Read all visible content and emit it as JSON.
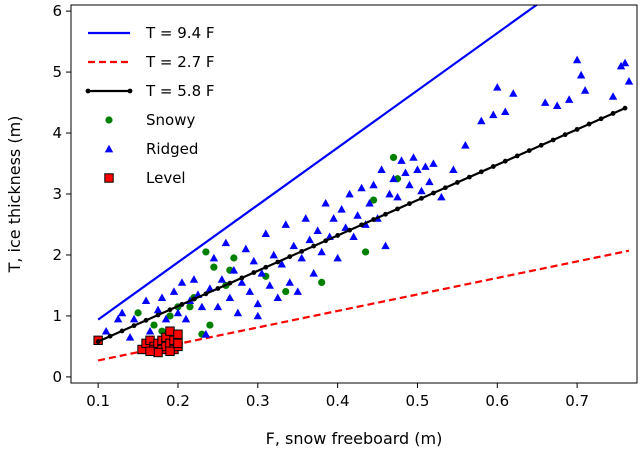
{
  "chart_data": {
    "type": "scatter",
    "title": "",
    "xlabel": "F, snow freeboard (m)",
    "ylabel": "T, ice thickness (m)",
    "xlim": [
      0.066,
      0.775
    ],
    "ylim": [
      -0.1,
      6.1
    ],
    "x_ticks": [
      0.1,
      0.2,
      0.3,
      0.4,
      0.5,
      0.6,
      0.7
    ],
    "x_tick_labels": [
      "0.1",
      "0.2",
      "0.3",
      "0.4",
      "0.5",
      "0.6",
      "0.7"
    ],
    "y_ticks": [
      0,
      1,
      2,
      3,
      4,
      5,
      6
    ],
    "y_tick_labels": [
      "0",
      "1",
      "2",
      "3",
      "4",
      "5",
      "6"
    ],
    "grid": false,
    "legend_position": "top-left",
    "series": [
      {
        "name": "T = 9.4 F",
        "kind": "line",
        "style": "solid",
        "color": "#0000ff",
        "x": [
          0.1,
          0.765
        ],
        "y": [
          0.94,
          7.19
        ]
      },
      {
        "name": "T = 2.7 F",
        "kind": "line",
        "style": "dashed",
        "color": "#ff0000",
        "x": [
          0.1,
          0.765
        ],
        "y": [
          0.27,
          2.07
        ]
      },
      {
        "name": "T = 5.8 F",
        "kind": "line-markers",
        "style": "solid",
        "color": "#000000",
        "x_start": 0.1,
        "x_end": 0.765,
        "x_step": 0.015,
        "slope": 5.8
      },
      {
        "name": "Snowy",
        "kind": "scatter",
        "marker": "circle",
        "color": "#008000",
        "points": [
          [
            0.15,
            1.05
          ],
          [
            0.17,
            0.85
          ],
          [
            0.19,
            1.0
          ],
          [
            0.2,
            1.15
          ],
          [
            0.215,
            1.15
          ],
          [
            0.22,
            1.3
          ],
          [
            0.235,
            2.05
          ],
          [
            0.245,
            1.8
          ],
          [
            0.24,
            0.85
          ],
          [
            0.26,
            1.5
          ],
          [
            0.265,
            1.75
          ],
          [
            0.27,
            1.95
          ],
          [
            0.31,
            1.65
          ],
          [
            0.335,
            1.4
          ],
          [
            0.38,
            1.55
          ],
          [
            0.435,
            2.05
          ],
          [
            0.445,
            2.9
          ],
          [
            0.47,
            3.6
          ],
          [
            0.475,
            3.25
          ],
          [
            0.23,
            0.7
          ],
          [
            0.18,
            0.75
          ]
        ]
      },
      {
        "name": "Ridged",
        "kind": "scatter",
        "marker": "triangle",
        "color": "#0000ff",
        "points": [
          [
            0.13,
            1.05
          ],
          [
            0.145,
            0.95
          ],
          [
            0.16,
            1.25
          ],
          [
            0.165,
            0.75
          ],
          [
            0.175,
            1.1
          ],
          [
            0.18,
            1.3
          ],
          [
            0.185,
            0.95
          ],
          [
            0.195,
            1.4
          ],
          [
            0.2,
            1.05
          ],
          [
            0.205,
            1.55
          ],
          [
            0.21,
            0.95
          ],
          [
            0.215,
            1.25
          ],
          [
            0.22,
            1.6
          ],
          [
            0.225,
            1.35
          ],
          [
            0.23,
            1.15
          ],
          [
            0.235,
            0.7
          ],
          [
            0.24,
            1.45
          ],
          [
            0.245,
            1.95
          ],
          [
            0.25,
            1.15
          ],
          [
            0.255,
            1.6
          ],
          [
            0.26,
            2.2
          ],
          [
            0.265,
            1.3
          ],
          [
            0.27,
            1.75
          ],
          [
            0.275,
            1.05
          ],
          [
            0.28,
            1.55
          ],
          [
            0.285,
            2.1
          ],
          [
            0.29,
            1.4
          ],
          [
            0.295,
            1.9
          ],
          [
            0.3,
            1.2
          ],
          [
            0.3,
            1.0
          ],
          [
            0.305,
            1.7
          ],
          [
            0.31,
            2.35
          ],
          [
            0.315,
            1.5
          ],
          [
            0.32,
            2.0
          ],
          [
            0.325,
            1.3
          ],
          [
            0.33,
            1.85
          ],
          [
            0.335,
            2.5
          ],
          [
            0.34,
            1.55
          ],
          [
            0.345,
            2.15
          ],
          [
            0.35,
            1.4
          ],
          [
            0.355,
            1.95
          ],
          [
            0.36,
            2.6
          ],
          [
            0.365,
            2.25
          ],
          [
            0.37,
            1.7
          ],
          [
            0.375,
            2.4
          ],
          [
            0.38,
            2.05
          ],
          [
            0.385,
            2.85
          ],
          [
            0.39,
            2.3
          ],
          [
            0.395,
            2.6
          ],
          [
            0.4,
            1.95
          ],
          [
            0.405,
            2.75
          ],
          [
            0.41,
            2.45
          ],
          [
            0.415,
            3.0
          ],
          [
            0.42,
            2.3
          ],
          [
            0.425,
            2.65
          ],
          [
            0.43,
            3.1
          ],
          [
            0.435,
            2.5
          ],
          [
            0.44,
            2.85
          ],
          [
            0.445,
            3.15
          ],
          [
            0.45,
            2.6
          ],
          [
            0.455,
            3.4
          ],
          [
            0.46,
            2.15
          ],
          [
            0.465,
            3.0
          ],
          [
            0.47,
            3.25
          ],
          [
            0.475,
            2.95
          ],
          [
            0.48,
            3.55
          ],
          [
            0.485,
            3.35
          ],
          [
            0.49,
            3.15
          ],
          [
            0.495,
            3.6
          ],
          [
            0.5,
            3.4
          ],
          [
            0.505,
            3.05
          ],
          [
            0.51,
            3.45
          ],
          [
            0.515,
            3.2
          ],
          [
            0.52,
            3.5
          ],
          [
            0.53,
            2.95
          ],
          [
            0.545,
            3.4
          ],
          [
            0.56,
            3.8
          ],
          [
            0.58,
            4.2
          ],
          [
            0.595,
            4.3
          ],
          [
            0.6,
            4.75
          ],
          [
            0.61,
            4.35
          ],
          [
            0.62,
            4.65
          ],
          [
            0.66,
            4.5
          ],
          [
            0.675,
            4.45
          ],
          [
            0.69,
            4.55
          ],
          [
            0.7,
            5.2
          ],
          [
            0.705,
            4.95
          ],
          [
            0.71,
            4.7
          ],
          [
            0.745,
            4.6
          ],
          [
            0.755,
            5.1
          ],
          [
            0.76,
            5.15
          ],
          [
            0.765,
            4.85
          ],
          [
            0.11,
            0.75
          ],
          [
            0.125,
            0.95
          ],
          [
            0.14,
            0.65
          ]
        ]
      },
      {
        "name": "Level",
        "kind": "scatter",
        "marker": "square",
        "color": "#ff0000",
        "edge_color": "#000000",
        "points": [
          [
            0.1,
            0.6
          ],
          [
            0.155,
            0.45
          ],
          [
            0.16,
            0.55
          ],
          [
            0.165,
            0.6
          ],
          [
            0.17,
            0.5
          ],
          [
            0.17,
            0.45
          ],
          [
            0.175,
            0.55
          ],
          [
            0.18,
            0.45
          ],
          [
            0.18,
            0.6
          ],
          [
            0.185,
            0.5
          ],
          [
            0.185,
            0.65
          ],
          [
            0.19,
            0.55
          ],
          [
            0.19,
            0.75
          ],
          [
            0.195,
            0.6
          ],
          [
            0.195,
            0.45
          ],
          [
            0.2,
            0.5
          ],
          [
            0.2,
            0.7
          ],
          [
            0.175,
            0.4
          ],
          [
            0.165,
            0.42
          ],
          [
            0.19,
            0.42
          ],
          [
            0.2,
            0.55
          ]
        ]
      }
    ]
  }
}
